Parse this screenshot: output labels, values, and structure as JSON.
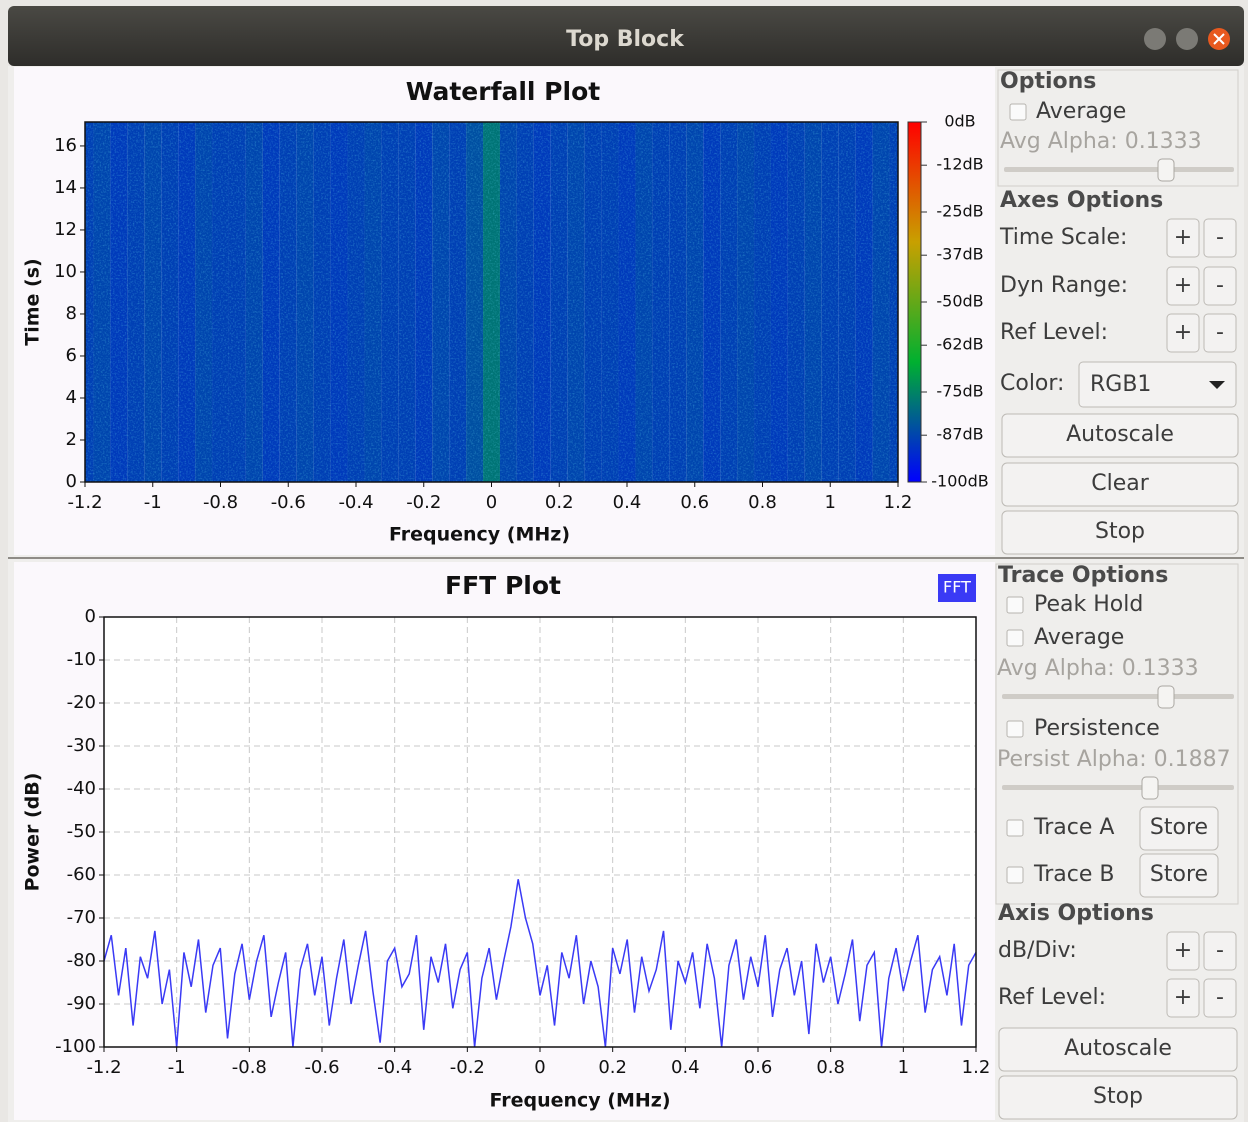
{
  "window": {
    "title": "Top Block"
  },
  "chart_data": [
    {
      "type": "heatmap",
      "title": "Waterfall Plot",
      "x_label": "Frequency (MHz)",
      "y_label": "Time (s)",
      "x": [
        -1.2,
        -1.15,
        -1.1,
        -1.05,
        -1,
        -0.95,
        -0.9,
        -0.85,
        -0.8,
        -0.75,
        -0.7,
        -0.65,
        -0.6,
        -0.55,
        -0.5,
        -0.45,
        -0.4,
        -0.35,
        -0.3,
        -0.25,
        -0.2,
        -0.15,
        -0.1,
        -0.05,
        0,
        0.05,
        0.1,
        0.15,
        0.2,
        0.25,
        0.3,
        0.35,
        0.4,
        0.45,
        0.5,
        0.55,
        0.6,
        0.65,
        0.7,
        0.75,
        0.8,
        0.85,
        0.9,
        0.95,
        1,
        1.05,
        1.1,
        1.15,
        1.2
      ],
      "values": [
        -88,
        -87,
        -89,
        -88,
        -87,
        -88,
        -89,
        -87,
        -88,
        -88,
        -87,
        -89,
        -88,
        -87,
        -88,
        -89,
        -88,
        -87,
        -88,
        -88,
        -89,
        -87,
        -88,
        -85,
        -78,
        -87,
        -88,
        -89,
        -88,
        -87,
        -88,
        -88,
        -89,
        -87,
        -88,
        -88,
        -87,
        -89,
        -88,
        -87,
        -88,
        -89,
        -88,
        -87,
        -88,
        -88,
        -89,
        -87,
        -88
      ],
      "xlim": [
        -1.2,
        1.2
      ],
      "xticks": [
        -1.2,
        -1,
        -0.8,
        -0.6,
        -0.4,
        -0.2,
        0,
        0.2,
        0.4,
        0.6,
        0.8,
        1,
        1.2
      ],
      "ylim": [
        0,
        17.14
      ],
      "yticks": [
        0,
        2,
        4,
        6,
        8,
        10,
        12,
        14,
        16
      ],
      "clim": [
        -100,
        0
      ],
      "cticks": [
        {
          "value": 0,
          "label": "0dB"
        },
        {
          "value": -12,
          "label": "-12dB"
        },
        {
          "value": -25,
          "label": "-25dB"
        },
        {
          "value": -37,
          "label": "-37dB"
        },
        {
          "value": -50,
          "label": "-50dB"
        },
        {
          "value": -62,
          "label": "-62dB"
        },
        {
          "value": -75,
          "label": "-75dB"
        },
        {
          "value": -87,
          "label": "-87dB"
        },
        {
          "value": -100,
          "label": "-100dB"
        }
      ],
      "colors": [
        "#0000ff",
        "#00b030",
        "#c8a000",
        "#ff0000"
      ],
      "grid": false
    },
    {
      "type": "line",
      "title": "FFT Plot",
      "x_label": "Frequency (MHz)",
      "y_label": "Power (dB)",
      "x": [
        -1.2,
        -1.18,
        -1.16,
        -1.14,
        -1.12,
        -1.1,
        -1.08,
        -1.06,
        -1.04,
        -1.02,
        -1,
        -0.98,
        -0.96,
        -0.94,
        -0.92,
        -0.9,
        -0.88,
        -0.86,
        -0.84,
        -0.82,
        -0.8,
        -0.78,
        -0.76,
        -0.74,
        -0.72,
        -0.7,
        -0.68,
        -0.66,
        -0.64,
        -0.62,
        -0.6,
        -0.58,
        -0.56,
        -0.54,
        -0.52,
        -0.5,
        -0.48,
        -0.46,
        -0.44,
        -0.42,
        -0.4,
        -0.38,
        -0.36,
        -0.34,
        -0.32,
        -0.3,
        -0.28,
        -0.26,
        -0.24,
        -0.22,
        -0.2,
        -0.18,
        -0.16,
        -0.14,
        -0.12,
        -0.1,
        -0.08,
        -0.06,
        -0.04,
        -0.02,
        0,
        0.02,
        0.04,
        0.06,
        0.08,
        0.1,
        0.12,
        0.14,
        0.16,
        0.18,
        0.2,
        0.22,
        0.24,
        0.26,
        0.28,
        0.3,
        0.32,
        0.34,
        0.36,
        0.38,
        0.4,
        0.42,
        0.44,
        0.46,
        0.48,
        0.5,
        0.52,
        0.54,
        0.56,
        0.58,
        0.6,
        0.62,
        0.64,
        0.66,
        0.68,
        0.7,
        0.72,
        0.74,
        0.76,
        0.78,
        0.8,
        0.82,
        0.84,
        0.86,
        0.88,
        0.9,
        0.92,
        0.94,
        0.96,
        0.98,
        1,
        1.02,
        1.04,
        1.06,
        1.08,
        1.1,
        1.12,
        1.14,
        1.16,
        1.18,
        1.2
      ],
      "series": [
        {
          "name": "FFT",
          "color": "#3a3af5",
          "values": [
            -80,
            -74,
            -88,
            -77,
            -95,
            -79,
            -84,
            -73,
            -90,
            -82,
            -100,
            -78,
            -86,
            -75,
            -92,
            -81,
            -77,
            -98,
            -83,
            -76,
            -89,
            -80,
            -74,
            -93,
            -85,
            -78,
            -100,
            -82,
            -76,
            -88,
            -79,
            -95,
            -84,
            -75,
            -90,
            -81,
            -73,
            -87,
            -99,
            -80,
            -77,
            -86,
            -83,
            -74,
            -96,
            -79,
            -85,
            -76,
            -91,
            -82,
            -78,
            -100,
            -84,
            -77,
            -89,
            -80,
            -72,
            -61,
            -70,
            -76,
            -88,
            -81,
            -95,
            -78,
            -84,
            -74,
            -90,
            -80,
            -86,
            -100,
            -77,
            -83,
            -75,
            -92,
            -79,
            -87,
            -82,
            -73,
            -96,
            -80,
            -85,
            -78,
            -91,
            -76,
            -84,
            -100,
            -81,
            -75,
            -89,
            -79,
            -86,
            -74,
            -93,
            -82,
            -77,
            -88,
            -80,
            -97,
            -76,
            -85,
            -79,
            -90,
            -83,
            -75,
            -94,
            -81,
            -78,
            -100,
            -84,
            -77,
            -87,
            -80,
            -74,
            -92,
            -82,
            -79,
            -88,
            -76,
            -95,
            -81,
            -78
          ]
        }
      ],
      "xlim": [
        -1.2,
        1.2
      ],
      "xticks": [
        -1.2,
        -1,
        -0.8,
        -0.6,
        -0.4,
        -0.2,
        0,
        0.2,
        0.4,
        0.6,
        0.8,
        1,
        1.2
      ],
      "ylim": [
        -100,
        0
      ],
      "yticks": [
        0,
        -10,
        -20,
        -30,
        -40,
        -50,
        -60,
        -70,
        -80,
        -90,
        -100
      ],
      "grid": true,
      "legend": "top-right"
    }
  ],
  "waterfall_controls": {
    "options_title": "Options",
    "average": "Average",
    "avg_alpha": "Avg Alpha: 0.1333",
    "axes_title": "Axes Options",
    "rows": [
      {
        "label": "Time Scale:",
        "plus": "+",
        "minus": "-"
      },
      {
        "label": "Dyn Range:",
        "plus": "+",
        "minus": "-"
      },
      {
        "label": "Ref Level:",
        "plus": "+",
        "minus": "-"
      }
    ],
    "color_label": "Color:",
    "color_value": "RGB1",
    "buttons": [
      "Autoscale",
      "Clear",
      "Stop"
    ]
  },
  "fft_controls": {
    "trace_title": "Trace Options",
    "peak_hold": "Peak Hold",
    "average": "Average",
    "avg_alpha": "Avg Alpha: 0.1333",
    "persistence": "Persistence",
    "persist_alpha": "Persist Alpha: 0.1887",
    "traces": [
      {
        "label": "Trace A",
        "button": "Store"
      },
      {
        "label": "Trace B",
        "button": "Store"
      }
    ],
    "axis_title": "Axis Options",
    "rows": [
      {
        "label": "dB/Div:",
        "plus": "+",
        "minus": "-"
      },
      {
        "label": "Ref Level:",
        "plus": "+",
        "minus": "-"
      }
    ],
    "buttons": [
      "Autoscale",
      "Stop"
    ]
  }
}
